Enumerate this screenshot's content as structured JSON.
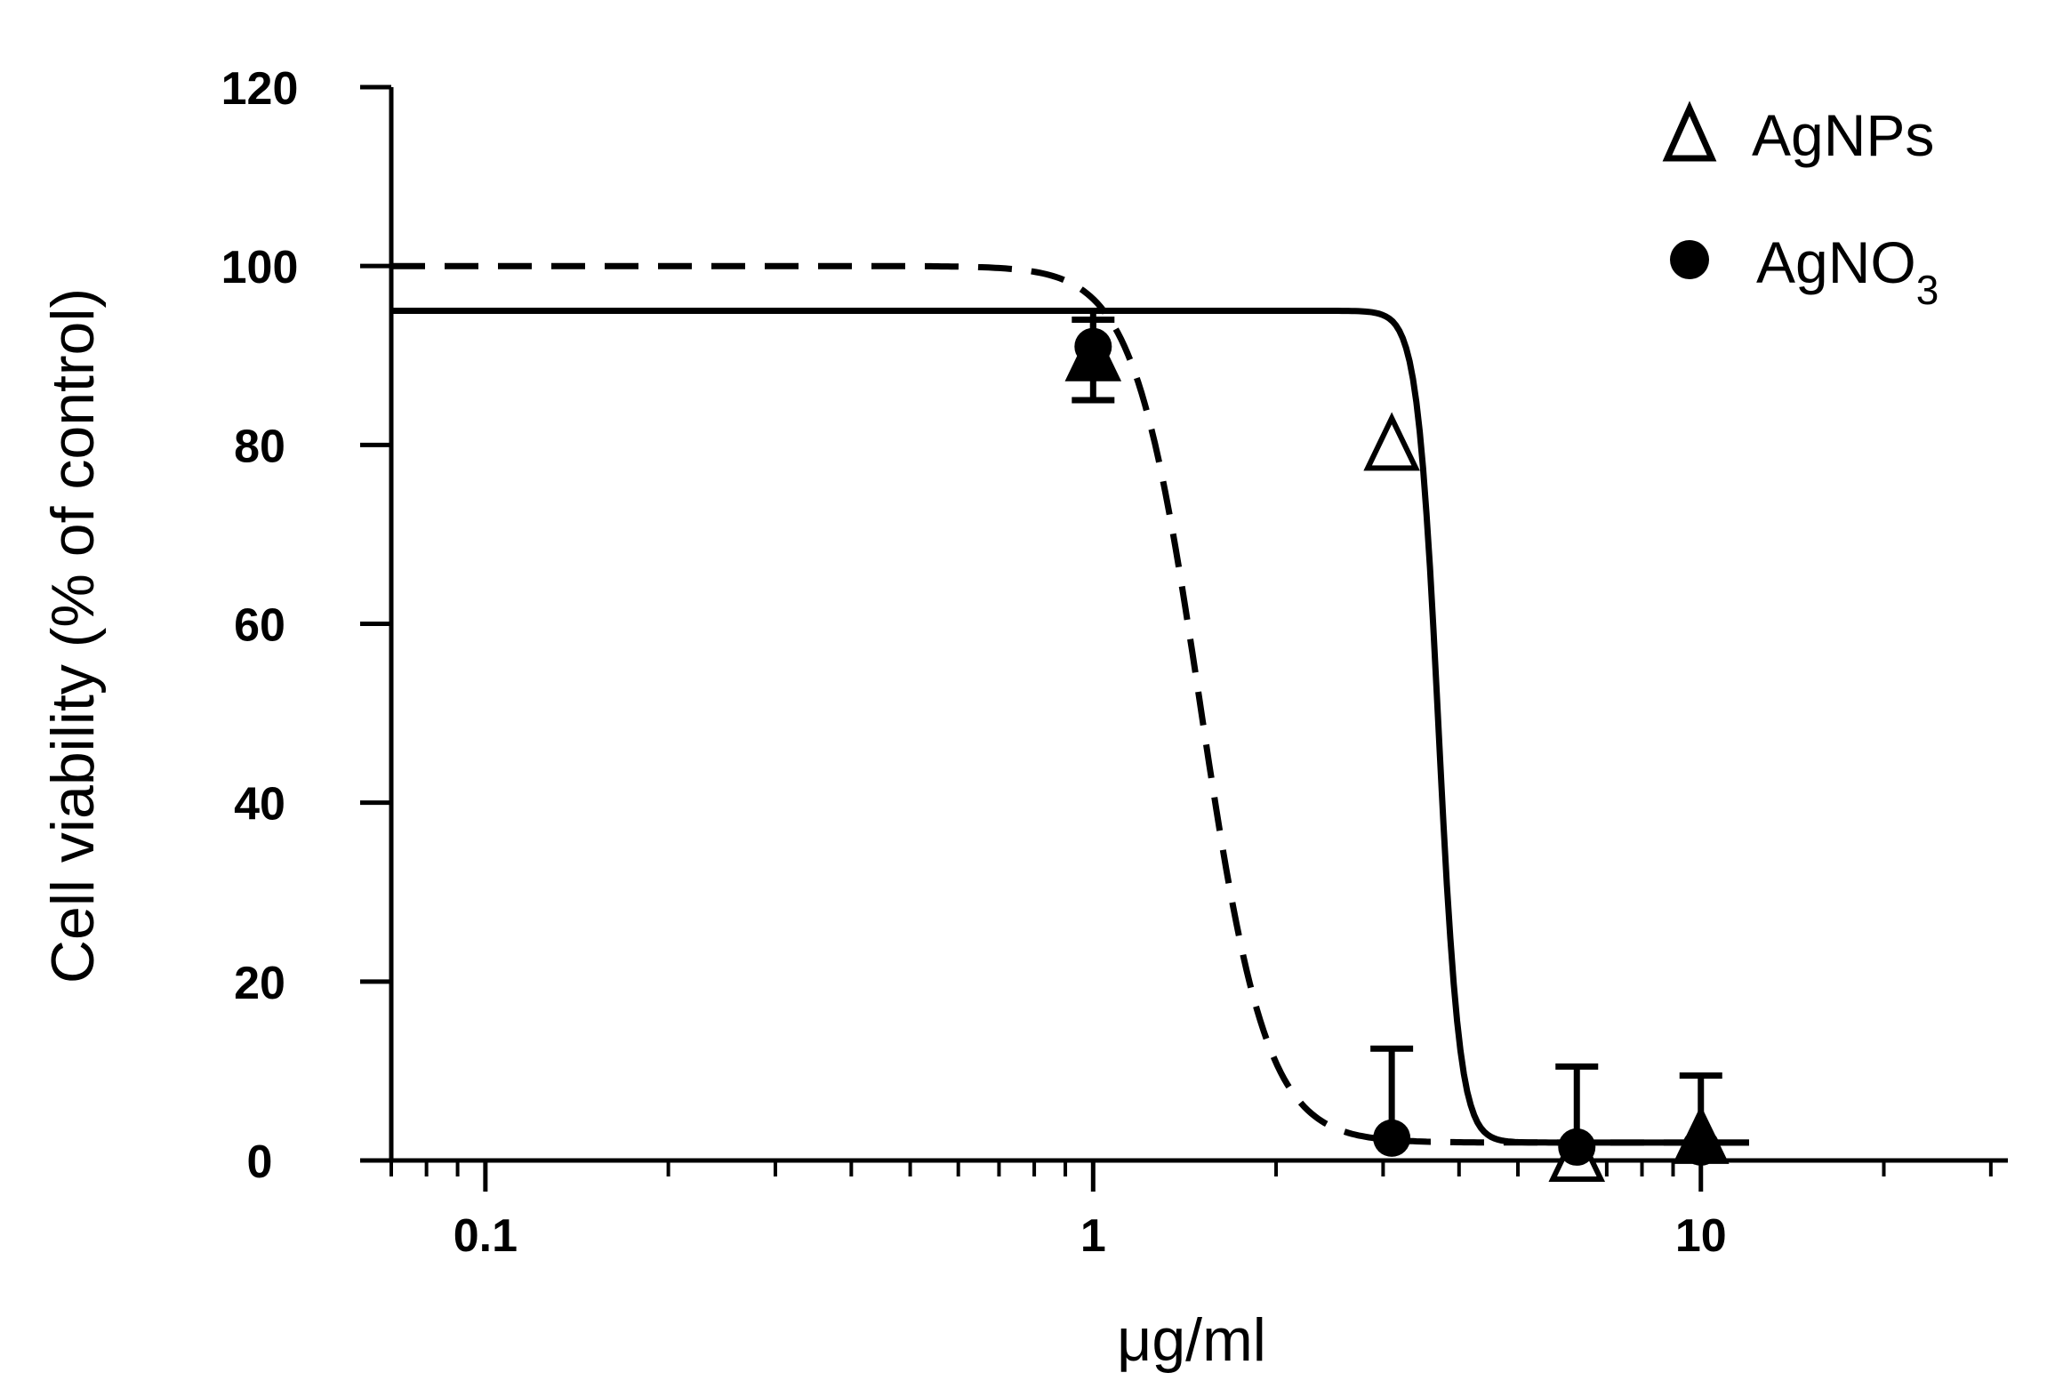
{
  "chart_data": {
    "type": "scatter",
    "x_scale": "log",
    "xlabel": "μg/ml",
    "ylabel": "Cell viability (% of control)",
    "xlim": [
      0.07,
      32
    ],
    "ylim": [
      0,
      120
    ],
    "x_ticks": [
      0.1,
      1,
      10
    ],
    "x_tick_labels": [
      "0.1",
      "1",
      "10"
    ],
    "y_ticks": [
      0,
      20,
      40,
      60,
      80,
      100,
      120
    ],
    "y_tick_labels": [
      "0",
      "20",
      "40",
      "60",
      "80",
      "100",
      "120"
    ],
    "grid": false,
    "legend_position": "top-right",
    "series": [
      {
        "name": "AgNPs",
        "marker": "open-triangle",
        "line": "solid",
        "points": [
          {
            "x": 1.0,
            "y": 90,
            "err": 5
          },
          {
            "x": 3.1,
            "y": 80,
            "err": 0
          },
          {
            "x": 6.25,
            "y": 0.5,
            "err": 0
          },
          {
            "x": 10,
            "y": 2.5,
            "err": 0
          }
        ],
        "fit": {
          "top": 95,
          "bottom": 2,
          "ec50": 3.7,
          "hill": 25
        }
      },
      {
        "name": "AgNO3",
        "label_main": "AgNO",
        "label_sub": "3",
        "marker": "filled-circle",
        "line": "dashed",
        "points": [
          {
            "x": 1.0,
            "y": 91,
            "err": 3
          },
          {
            "x": 3.1,
            "y": 2.5,
            "err": 10
          },
          {
            "x": 6.25,
            "y": 1.5,
            "err": 9
          },
          {
            "x": 10,
            "y": 1.5,
            "err": 8
          }
        ],
        "fit": {
          "top": 100,
          "bottom": 2,
          "ec50": 1.5,
          "hill": 8
        }
      }
    ]
  }
}
